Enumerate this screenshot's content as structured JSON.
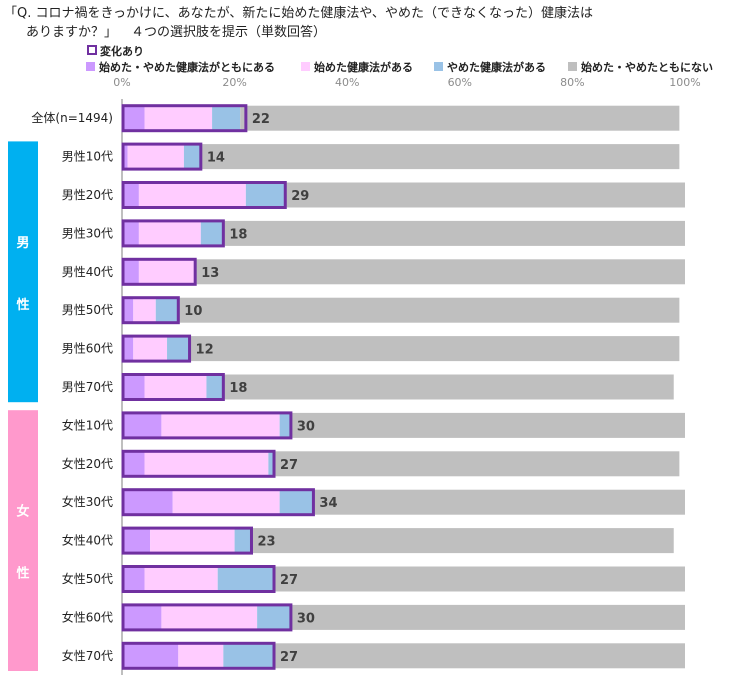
{
  "question": {
    "line1": "「Q. コロナ禍をきっかけに、あなたが、新たに始めた健康法や、やめた（できなくなった）健康法は",
    "line2": "ありますか？」",
    "note": "４つの選択肢を提示（単数回答）"
  },
  "chart_data": {
    "type": "bar",
    "orientation": "horizontal",
    "stacked": true,
    "categories": [
      "全体(n=1494)",
      "男性10代",
      "男性20代",
      "男性30代",
      "男性40代",
      "男性50代",
      "男性60代",
      "男性70代",
      "女性10代",
      "女性20代",
      "女性30代",
      "女性40代",
      "女性50代",
      "女性60代",
      "女性70代"
    ],
    "series": [
      {
        "name": "始めた・やめた健康法がともにある",
        "color": "#cc99ff",
        "values": [
          4,
          1,
          3,
          3,
          3,
          2,
          2,
          4,
          7,
          4,
          9,
          5,
          4,
          7,
          10
        ]
      },
      {
        "name": "始めた健康法がある",
        "color": "#ffccff",
        "values": [
          12,
          10,
          19,
          11,
          10,
          4,
          6,
          11,
          21,
          22,
          19,
          15,
          13,
          17,
          8
        ]
      },
      {
        "name": "やめた健康法がある",
        "color": "#99c2e6",
        "values": [
          5,
          3,
          7,
          4,
          0,
          4,
          4,
          3,
          2,
          1,
          6,
          3,
          10,
          6,
          9
        ]
      },
      {
        "name": "始めた・やめたともにない",
        "color": "#bfbfbf",
        "values": [
          78,
          85,
          71,
          82,
          87,
          89,
          87,
          80,
          70,
          72,
          66,
          75,
          73,
          70,
          73
        ]
      }
    ],
    "change_series": {
      "name": "変化あり",
      "color": "#7030a0",
      "values": [
        22,
        14,
        29,
        18,
        13,
        10,
        12,
        18,
        30,
        27,
        34,
        23,
        27,
        30,
        27
      ]
    },
    "xlim": [
      0,
      100
    ],
    "xticks": [
      "0%",
      "20%",
      "40%",
      "60%",
      "80%",
      "100%"
    ],
    "legend": "top",
    "groups": [
      {
        "label": "男性",
        "color": "#00b0f0"
      },
      {
        "label": "女性",
        "color": "#ff99cc"
      }
    ]
  }
}
